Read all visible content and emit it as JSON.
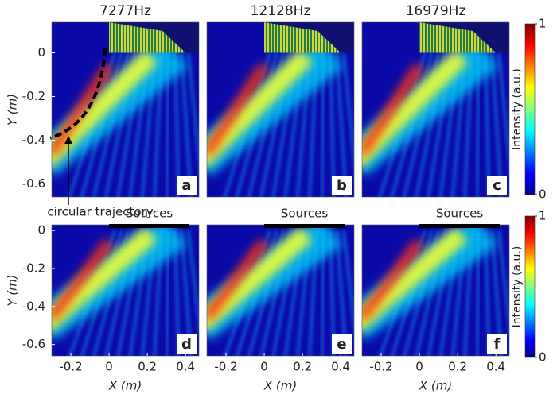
{
  "chart_data": [
    {
      "type": "heatmap",
      "title": "7277Hz",
      "panel": "a",
      "ylabel": "Y (m)",
      "xlim": [
        -0.3,
        0.47
      ],
      "ylim": [
        -0.66,
        0.14
      ],
      "yticks": [
        0,
        -0.2,
        -0.4,
        -0.6
      ],
      "annotation": "circular trajectory"
    },
    {
      "type": "heatmap",
      "title": "12128Hz",
      "panel": "b",
      "xlim": [
        -0.3,
        0.47
      ],
      "ylim": [
        -0.66,
        0.14
      ]
    },
    {
      "type": "heatmap",
      "title": "16979Hz",
      "panel": "c",
      "xlim": [
        -0.3,
        0.47
      ],
      "ylim": [
        -0.66,
        0.14
      ]
    },
    {
      "type": "heatmap",
      "panel": "d",
      "ylabel": "Y (m)",
      "xlabel": "X (m)",
      "xlim": [
        -0.3,
        0.47
      ],
      "ylim": [
        -0.66,
        0.03
      ],
      "xticks": [
        -0.2,
        0,
        0.2,
        0.4
      ],
      "yticks": [
        0,
        -0.2,
        -0.4,
        -0.6
      ],
      "annotation": "Sources"
    },
    {
      "type": "heatmap",
      "panel": "e",
      "xlabel": "X (m)",
      "xlim": [
        -0.3,
        0.47
      ],
      "ylim": [
        -0.66,
        0.03
      ],
      "xticks": [
        -0.2,
        0,
        0.2,
        0.4
      ],
      "annotation": "Sources"
    },
    {
      "type": "heatmap",
      "panel": "f",
      "xlabel": "X (m)",
      "xlim": [
        -0.3,
        0.47
      ],
      "ylim": [
        -0.66,
        0.03
      ],
      "xticks": [
        -0.2,
        0,
        0.2,
        0.4
      ],
      "annotation": "Sources"
    }
  ],
  "colorbars": [
    {
      "label": "Intensity (a.u.)",
      "lim": [
        0,
        1
      ],
      "ticks": [
        1,
        0
      ]
    },
    {
      "label": "Intensity (a.u.)",
      "lim": [
        0,
        1
      ],
      "ticks": [
        1,
        0
      ]
    }
  ]
}
